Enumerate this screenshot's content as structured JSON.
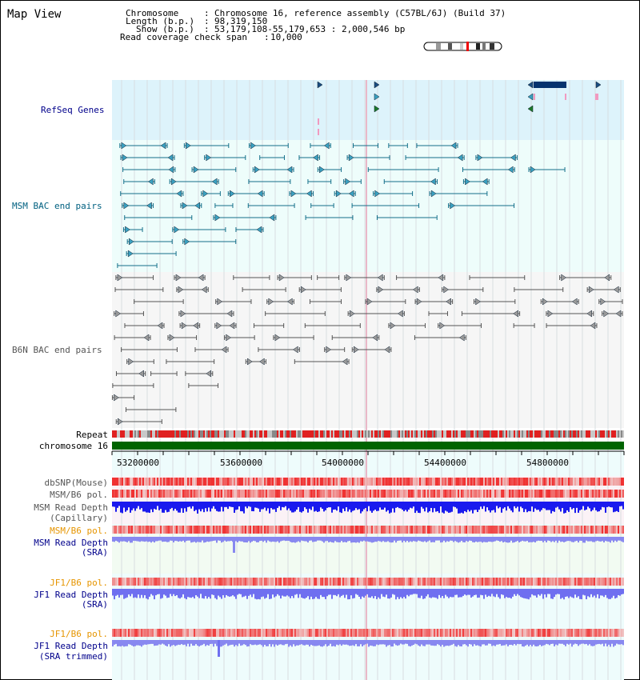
{
  "view": {
    "title": "Map View",
    "info": {
      "chromosome_label": "Chromosome",
      "chromosome_value": "Chromosome 16, reference assembly (C57BL/6J) (Build 37)",
      "length_label": "Length (b.p.)",
      "length_value": "98,319,150",
      "show_label": "Show (b.p.)",
      "show_value": "53,179,108-55,179,653 : 2,000,546 bp",
      "coverage_label": "Read coverage check span",
      "coverage_value": "10,000"
    }
  },
  "tracks": {
    "refseq": "RefSeq Genes",
    "msm_bac": "MSM BAC end pairs",
    "b6n_bac": "B6N BAC end pairs",
    "repeat": "Repeat",
    "chromosome": "chromosome 16",
    "dbsnp": "dbSNP(Mouse)",
    "msm_b6_pol_1": "MSM/B6 pol.",
    "msm_depth_cap_1": "MSM Read Depth",
    "msm_depth_cap_2": "(Capillary)",
    "msm_b6_pol_2": "MSM/B6 pol.",
    "msm_depth_sra_1": "MSM Read Depth",
    "msm_depth_sra_2": "(SRA)",
    "jf1_b6_pol_1": "JF1/B6 pol.",
    "jf1_depth_sra_1": "JF1 Read Depth",
    "jf1_depth_sra_2": "(SRA)",
    "jf1_b6_pol_2": "JF1/B6 pol.",
    "jf1_depth_trim_1": "JF1 Read Depth",
    "jf1_depth_trim_2": "(SRA trimmed)"
  },
  "axis": {
    "ticks": [
      "53200000",
      "53600000",
      "54000000",
      "54400000",
      "54800000"
    ]
  },
  "colors": {
    "refseq_bg": "#ddf3fb",
    "msm_bg": "#eefdfb",
    "b6n_bg": "#f6f6f6",
    "chrom_bar": "#006400",
    "msm_depth_cap": "#1a1aee",
    "depth_sra": "#8888f0",
    "jf1_depth": "#6f6ff0",
    "snp_red": "#e23030"
  }
}
